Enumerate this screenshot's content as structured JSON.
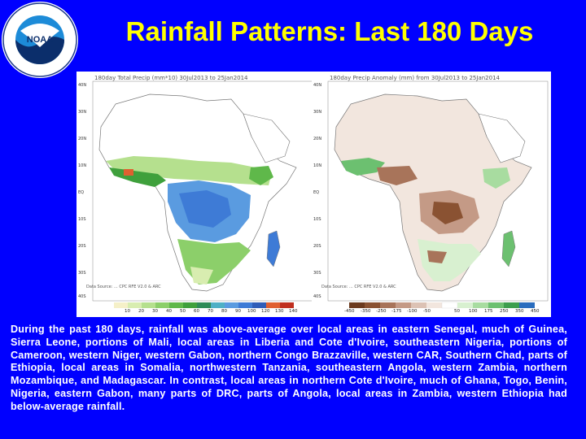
{
  "title": "Rainfall Patterns: Last 180 Days",
  "logo": {
    "text": "NATIONAL OCEANIC AND ATMOSPHERIC ADMINISTRATION · U.S. DEPARTMENT OF COMMERCE",
    "center": "NOAA",
    "colors": {
      "outer": "#FFFFFF",
      "ring": "#1E3A8A",
      "sky": "#1D8BD8",
      "sea": "#0B2E6B"
    }
  },
  "maps": [
    {
      "caption": "180day Total Precip (mm*10)   30Jul2013 to 25Jan2014",
      "latitudes": [
        "40N",
        "30N",
        "20N",
        "10N",
        "EQ",
        "10S",
        "20S",
        "30S",
        "40S"
      ],
      "legend": [
        "10",
        "20",
        "30",
        "40",
        "50",
        "60",
        "70",
        "80",
        "90",
        "100",
        "120",
        "130",
        "140"
      ],
      "credit": "Data Source: ... CPC RFE V2.0 & ARC",
      "legend_colors": [
        "#F5F0C8",
        "#D8EDB0",
        "#B5E08E",
        "#8CCF6A",
        "#5FB84A",
        "#3FA03C",
        "#2E8B57",
        "#4FB0C6",
        "#5A9BE0",
        "#3E7BD6",
        "#2F5DB8",
        "#E06030",
        "#C03020"
      ]
    },
    {
      "caption": "180day Precip Anomaly (mm) from 30Jul2013 to 25Jan2014",
      "latitudes": [
        "40N",
        "30N",
        "20N",
        "10N",
        "EQ",
        "10S",
        "20S",
        "30S",
        "40S"
      ],
      "legend": [
        "-450",
        "-350",
        "-250",
        "-175",
        "-100",
        "-50",
        "50",
        "100",
        "175",
        "250",
        "350",
        "450"
      ],
      "credit": "Data Source: ... CPC RFE V2.0 & ARC",
      "legend_colors": [
        "#6B3A1E",
        "#8A5232",
        "#A8745A",
        "#C49A86",
        "#DCC2B4",
        "#F2E6DE",
        "#FFFFFF",
        "#D8F0D0",
        "#A8DCA0",
        "#6CC070",
        "#3C9E4E",
        "#2A6DBE"
      ]
    }
  ],
  "summary": "During the past 180 days, rainfall was above-average over local areas in eastern Senegal, much of Guinea, Sierra Leone, portions of Mali, local areas in Liberia and Cote d'Ivoire, southeastern Nigeria, portions of Cameroon, western Niger, western Gabon, northern Congo Brazzaville, western CAR, Southern Chad, parts of Ethiopia, local areas in Somalia, northwestern Tanzania, southeastern Angola, western Zambia, northern Mozambique, and Madagascar. In contrast, local areas in northern Cote d'Ivoire, much of Ghana, Togo, Benin, Nigeria, eastern Gabon, many parts of DRC, parts of Angola, local areas in Zambia, western Ethiopia had below-average rainfall."
}
